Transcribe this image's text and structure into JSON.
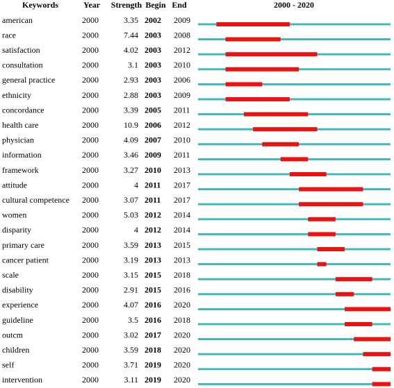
{
  "header": {
    "keyword": "Keywords",
    "year": "Year",
    "strength": "Strength",
    "begin": "Begin",
    "end": "End"
  },
  "timeline": {
    "label": "2000 - 2020",
    "start": 2000,
    "end": 2020
  },
  "rows": [
    {
      "keyword": "american",
      "year": 2000,
      "strength": 3.35,
      "begin": 2002,
      "end": 2009
    },
    {
      "keyword": "race",
      "year": 2000,
      "strength": 7.44,
      "begin": 2003,
      "end": 2008
    },
    {
      "keyword": "satisfaction",
      "year": 2000,
      "strength": 4.02,
      "begin": 2003,
      "end": 2012
    },
    {
      "keyword": "consultation",
      "year": 2000,
      "strength": 3.1,
      "begin": 2003,
      "end": 2010
    },
    {
      "keyword": "general practice",
      "year": 2000,
      "strength": 2.93,
      "begin": 2003,
      "end": 2006
    },
    {
      "keyword": "ethnicity",
      "year": 2000,
      "strength": 2.88,
      "begin": 2003,
      "end": 2009
    },
    {
      "keyword": "concordance",
      "year": 2000,
      "strength": 3.39,
      "begin": 2005,
      "end": 2011
    },
    {
      "keyword": "health care",
      "year": 2000,
      "strength": 10.9,
      "begin": 2006,
      "end": 2012
    },
    {
      "keyword": "physician",
      "year": 2000,
      "strength": 4.09,
      "begin": 2007,
      "end": 2010
    },
    {
      "keyword": "information",
      "year": 2000,
      "strength": 3.46,
      "begin": 2009,
      "end": 2011
    },
    {
      "keyword": "framework",
      "year": 2000,
      "strength": 3.27,
      "begin": 2010,
      "end": 2013
    },
    {
      "keyword": "attitude",
      "year": 2000,
      "strength": 4,
      "begin": 2011,
      "end": 2017
    },
    {
      "keyword": "cultural competence",
      "year": 2000,
      "strength": 3.07,
      "begin": 2011,
      "end": 2017
    },
    {
      "keyword": "women",
      "year": 2000,
      "strength": 5.03,
      "begin": 2012,
      "end": 2014
    },
    {
      "keyword": "disparity",
      "year": 2000,
      "strength": 4,
      "begin": 2012,
      "end": 2014
    },
    {
      "keyword": "primary care",
      "year": 2000,
      "strength": 3.59,
      "begin": 2013,
      "end": 2015
    },
    {
      "keyword": "cancer patient",
      "year": 2000,
      "strength": 3.19,
      "begin": 2013,
      "end": 2013
    },
    {
      "keyword": "scale",
      "year": 2000,
      "strength": 3.15,
      "begin": 2015,
      "end": 2018
    },
    {
      "keyword": "disability",
      "year": 2000,
      "strength": 2.91,
      "begin": 2015,
      "end": 2016
    },
    {
      "keyword": "experience",
      "year": 2000,
      "strength": 4.07,
      "begin": 2016,
      "end": 2020
    },
    {
      "keyword": "guideline",
      "year": 2000,
      "strength": 3.5,
      "begin": 2016,
      "end": 2018
    },
    {
      "keyword": "outcm",
      "year": 2000,
      "strength": 3.02,
      "begin": 2017,
      "end": 2020
    },
    {
      "keyword": "children",
      "year": 2000,
      "strength": 3.59,
      "begin": 2018,
      "end": 2020
    },
    {
      "keyword": "self",
      "year": 2000,
      "strength": 3.71,
      "begin": 2019,
      "end": 2020
    },
    {
      "keyword": "intervention",
      "year": 2000,
      "strength": 3.11,
      "begin": 2019,
      "end": 2020
    }
  ]
}
